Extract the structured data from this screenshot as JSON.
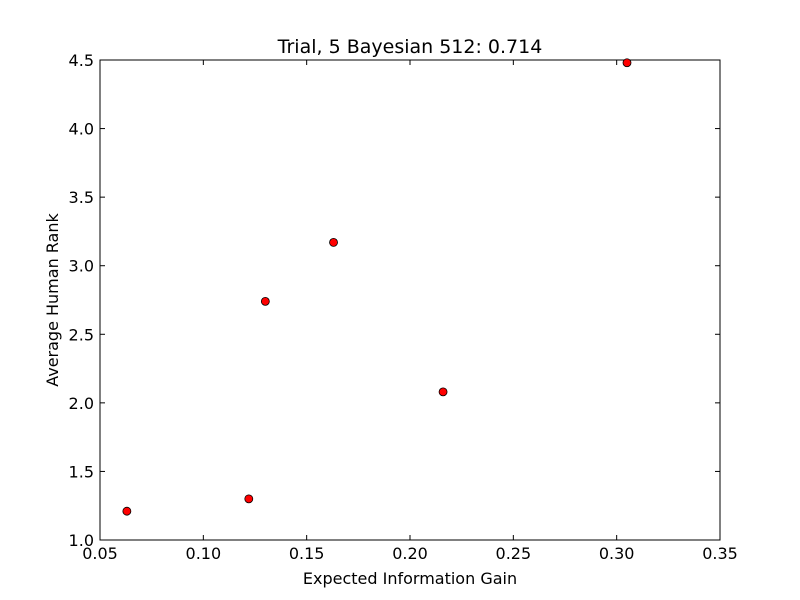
{
  "chart_data": {
    "type": "scatter",
    "title": "Trial, 5 Bayesian 512: 0.714",
    "xlabel": "Expected Information Gain",
    "ylabel": "Average Human Rank",
    "xlim": [
      0.05,
      0.35
    ],
    "ylim": [
      1.0,
      4.5
    ],
    "xticks": [
      "0.05",
      "0.10",
      "0.15",
      "0.20",
      "0.25",
      "0.30",
      "0.35"
    ],
    "yticks": [
      "1.0",
      "1.5",
      "2.0",
      "2.5",
      "3.0",
      "3.5",
      "4.0",
      "4.5"
    ],
    "grid": false,
    "points": [
      {
        "x": 0.063,
        "y": 1.21
      },
      {
        "x": 0.122,
        "y": 1.3
      },
      {
        "x": 0.13,
        "y": 2.74
      },
      {
        "x": 0.163,
        "y": 3.17
      },
      {
        "x": 0.216,
        "y": 2.08
      },
      {
        "x": 0.305,
        "y": 4.48
      }
    ],
    "marker_color": "#ff0000",
    "marker_edge_color": "#000000"
  }
}
